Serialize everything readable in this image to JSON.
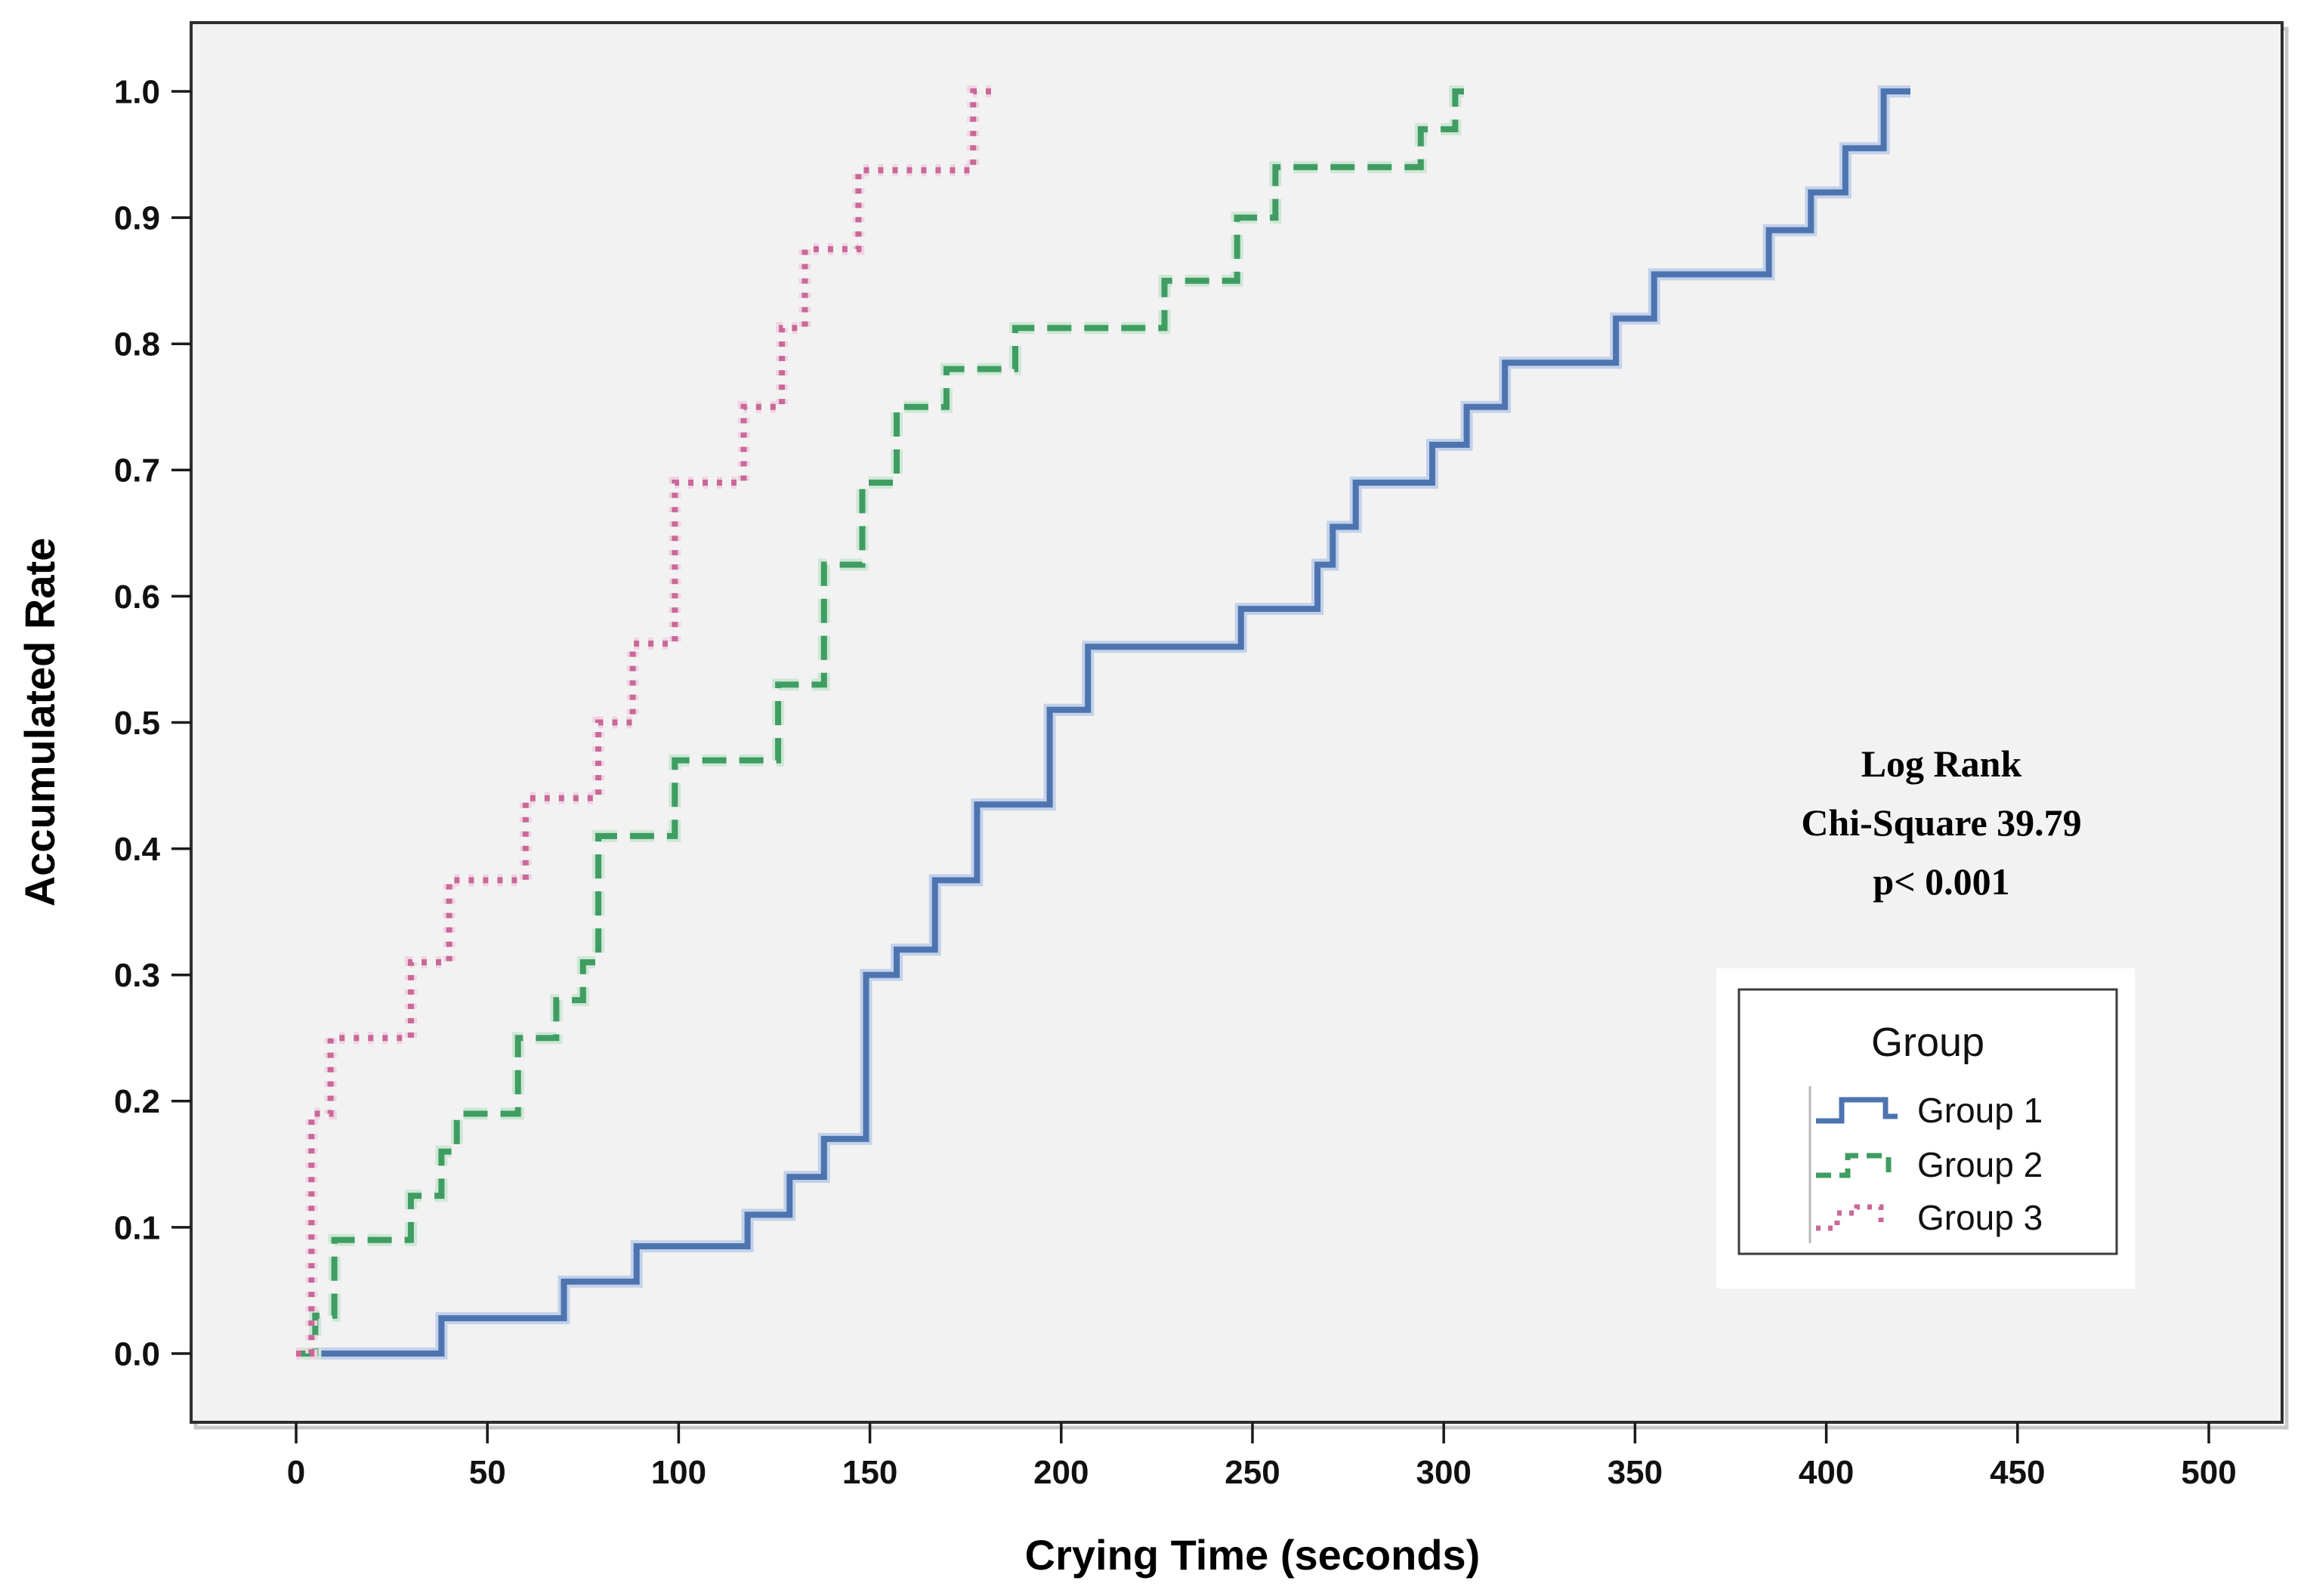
{
  "chart_data": {
    "type": "line",
    "subtype": "step-cumulative-incidence",
    "title": "",
    "xlabel": "Crying Time (seconds)",
    "ylabel": "Accumulated Rate",
    "axes": {
      "xlim": [
        0,
        500
      ],
      "ylim": [
        0.0,
        1.0
      ],
      "grid": false,
      "x_ticks": [
        0,
        50,
        100,
        150,
        200,
        250,
        300,
        350,
        400,
        450,
        500
      ],
      "x_tick_labels": [
        "0",
        "50",
        "100",
        "150",
        "200",
        "250",
        "300",
        "350",
        "400",
        "450",
        "500"
      ],
      "y_ticks": [
        0.0,
        0.1,
        0.2,
        0.3,
        0.4,
        0.5,
        0.6,
        0.7,
        0.8,
        0.9,
        1.0
      ],
      "y_tick_labels": [
        "0.0",
        "0.1",
        "0.2",
        "0.3",
        "0.4",
        "0.5",
        "0.6",
        "0.7",
        "0.8",
        "0.9",
        "1.0"
      ]
    },
    "annotation": {
      "lines": [
        "Log Rank",
        "Chi-Square 39.79",
        "p< 0.001"
      ]
    },
    "legend": {
      "title": "Group",
      "position": "inside-lower-right",
      "entries": [
        {
          "label": "Group 1",
          "style": "solid"
        },
        {
          "label": "Group 2",
          "style": "dashed"
        },
        {
          "label": "Group 3",
          "style": "dotted"
        }
      ]
    },
    "series": [
      {
        "name": "Group 1",
        "color": "#4e74b0",
        "halo": "#c3d2ea",
        "dash": "",
        "end_x": 422,
        "points": [
          [
            0,
            0
          ],
          [
            38,
            0.028
          ],
          [
            70,
            0.057
          ],
          [
            89,
            0.085
          ],
          [
            118,
            0.11
          ],
          [
            129,
            0.14
          ],
          [
            138,
            0.17
          ],
          [
            149,
            0.3
          ],
          [
            157,
            0.32
          ],
          [
            167,
            0.375
          ],
          [
            178,
            0.435
          ],
          [
            197,
            0.51
          ],
          [
            207,
            0.56
          ],
          [
            247,
            0.59
          ],
          [
            267,
            0.625
          ],
          [
            271,
            0.655
          ],
          [
            277,
            0.69
          ],
          [
            297,
            0.72
          ],
          [
            306,
            0.75
          ],
          [
            316,
            0.785
          ],
          [
            345,
            0.82
          ],
          [
            355,
            0.855
          ],
          [
            385,
            0.89
          ],
          [
            396,
            0.92
          ],
          [
            405,
            0.955
          ],
          [
            415,
            1.0
          ]
        ]
      },
      {
        "name": "Group 2",
        "color": "#3f9d62",
        "halo": "#cfe7d6",
        "dash": "32 17",
        "end_x": 307,
        "points": [
          [
            0,
            0
          ],
          [
            5,
            0.03
          ],
          [
            10,
            0.09
          ],
          [
            30,
            0.125
          ],
          [
            38,
            0.16
          ],
          [
            42,
            0.19
          ],
          [
            58,
            0.25
          ],
          [
            68,
            0.28
          ],
          [
            75,
            0.31
          ],
          [
            79,
            0.41
          ],
          [
            99,
            0.47
          ],
          [
            126,
            0.53
          ],
          [
            138,
            0.625
          ],
          [
            148,
            0.69
          ],
          [
            157,
            0.75
          ],
          [
            170,
            0.78
          ],
          [
            188,
            0.8125
          ],
          [
            227,
            0.85
          ],
          [
            246,
            0.9
          ],
          [
            256,
            0.94
          ],
          [
            294,
            0.97
          ],
          [
            303,
            1.0
          ]
        ]
      },
      {
        "name": "Group 3",
        "color": "#ca6899",
        "halo": "#f0d4e3",
        "dash": "7 12",
        "end_x": 183,
        "points": [
          [
            0,
            0
          ],
          [
            4,
            0.19
          ],
          [
            9,
            0.25
          ],
          [
            30,
            0.31
          ],
          [
            40,
            0.375
          ],
          [
            60,
            0.44
          ],
          [
            79,
            0.5
          ],
          [
            88,
            0.5625
          ],
          [
            99,
            0.69
          ],
          [
            117,
            0.75
          ],
          [
            127,
            0.8125
          ],
          [
            133,
            0.875
          ],
          [
            147,
            0.9375
          ],
          [
            177,
            1.0
          ]
        ]
      }
    ]
  }
}
